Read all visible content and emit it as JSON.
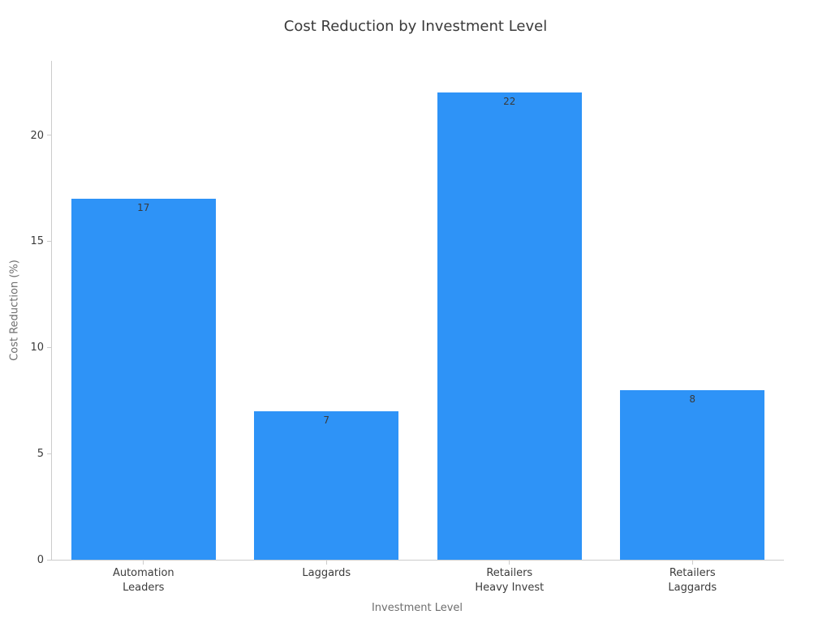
{
  "chart_data": {
    "type": "bar",
    "title": "Cost Reduction by Investment Level",
    "xlabel": "Investment Level",
    "ylabel": "Cost Reduction (%)",
    "categories": [
      "Automation\nLeaders",
      "Laggards",
      "Retailers\nHeavy Invest",
      "Retailers\nLaggards"
    ],
    "values": [
      17,
      7,
      22,
      8
    ],
    "bar_labels": [
      "17",
      "7",
      "22",
      "8"
    ],
    "yticks": [
      0,
      5,
      10,
      15,
      20
    ],
    "ylim": [
      0,
      23.5
    ],
    "bar_color": "#2e93f7",
    "spine_color": "#cccccc",
    "grid": false,
    "legend": "none",
    "bar_width_fraction": 0.79
  }
}
